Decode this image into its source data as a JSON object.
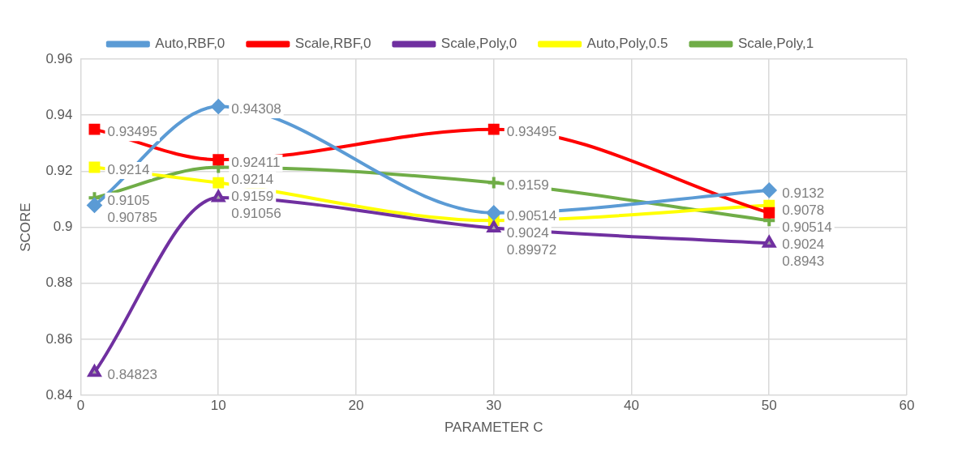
{
  "chart_data": {
    "type": "line",
    "xlabel": "PARAMETER C",
    "ylabel": "SCORE",
    "x": [
      1,
      10,
      30,
      50
    ],
    "xlim": [
      0,
      60
    ],
    "xticks": [
      0,
      10,
      20,
      30,
      40,
      50,
      60
    ],
    "ylim": [
      0.84,
      0.96
    ],
    "yticks": [
      0.84,
      0.86,
      0.88,
      0.9,
      0.92,
      0.94,
      0.96
    ],
    "grid": true,
    "legend": "top",
    "data_labels": true,
    "series": [
      {
        "name": "Auto,RBF,0",
        "color": "#5b9bd5",
        "marker": "diamond",
        "values": [
          0.90785,
          0.94308,
          0.90514,
          0.9132
        ]
      },
      {
        "name": "Scale,RBF,0",
        "color": "#ff0000",
        "marker": "square",
        "values": [
          0.93495,
          0.92411,
          0.93495,
          0.90514
        ]
      },
      {
        "name": "Scale,Poly,0",
        "color": "#7030a0",
        "marker": "triangle",
        "values": [
          0.84823,
          0.91056,
          0.89972,
          0.8943
        ]
      },
      {
        "name": "Auto,Poly,0.5",
        "color": "#ffff00",
        "marker": "square",
        "values": [
          0.9214,
          0.9159,
          0.9024,
          0.9078
        ]
      },
      {
        "name": "Scale,Poly,1",
        "color": "#70ad47",
        "marker": "cross",
        "values": [
          0.9105,
          0.9214,
          0.9159,
          0.9024
        ]
      }
    ]
  }
}
